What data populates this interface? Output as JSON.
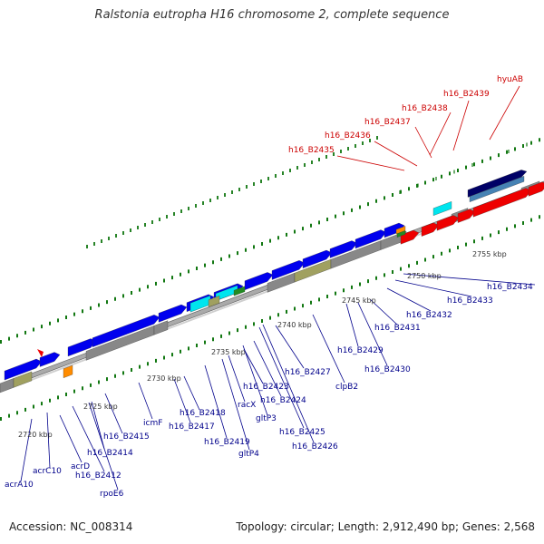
{
  "title": "Ralstonia eutropha H16 chromosome 2, complete sequence",
  "footer": {
    "accession": "Accession: NC_008314",
    "topology": "Topology: circular; Length: 2,912,490 bp; Genes: 2,568"
  },
  "ticks": [
    "2720 kbp",
    "2725 kbp",
    "2730 kbp",
    "2735 kbp",
    "2740 kbp",
    "2745 kbp",
    "2750 kbp",
    "2755 kbp"
  ],
  "red_labels": [
    "h16_B2435",
    "h16_B2436",
    "h16_B2437",
    "h16_B2438",
    "h16_B2439",
    "hyuAB"
  ],
  "blue_labels": [
    "acrA10",
    "acrC10",
    "acrD",
    "h16_B2412",
    "rpoE6",
    "h16_B2414",
    "h16_B2415",
    "icmF",
    "h16_B2417",
    "h16_B2418",
    "h16_B2419",
    "gltP4",
    "racX",
    "gltP3",
    "h16_B2423",
    "h16_B2424",
    "h16_B2425",
    "h16_B2426",
    "h16_B2427",
    "clpB2",
    "h16_B2429",
    "h16_B2430",
    "h16_B2431",
    "h16_B2432",
    "h16_B2433",
    "h16_B2434"
  ],
  "colors": {
    "red_label": "#cc0000",
    "blue_label": "#00008b",
    "gene_blue": "#0000ee",
    "gene_red": "#ee0000",
    "gene_cyan": "#00e5ee",
    "gene_gray": "#888888",
    "gene_olive": "#a0a060",
    "gene_green": "#228b22",
    "gene_orange": "#ff8c00",
    "gene_navy": "#000066",
    "tick_green": "#117711"
  }
}
